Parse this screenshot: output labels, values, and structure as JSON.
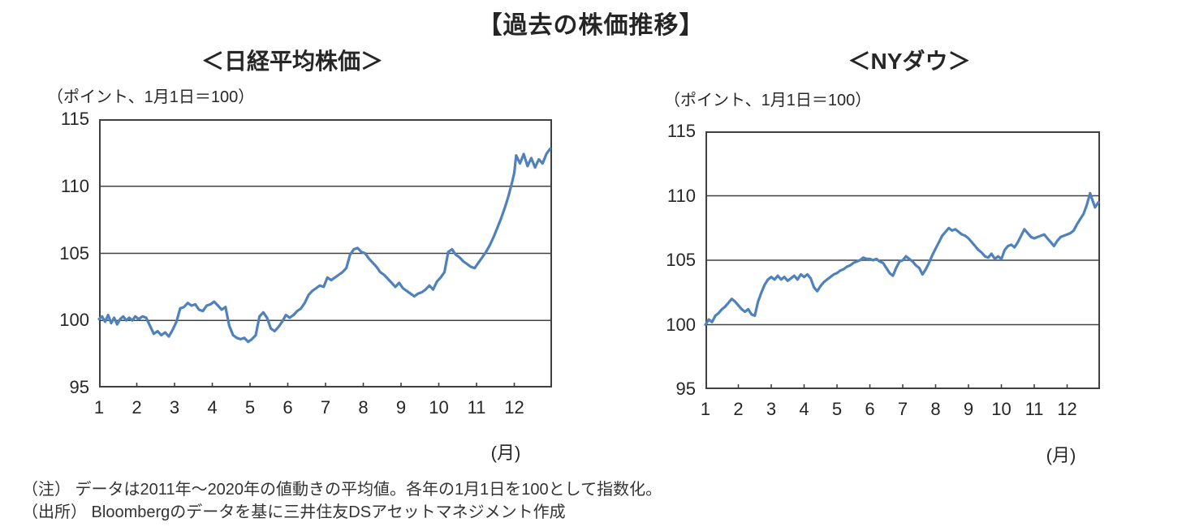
{
  "page_title": "【過去の株価推移】",
  "colors": {
    "background": "#ffffff",
    "line": "#4f81bd",
    "grid": "#404040",
    "text": "#262626",
    "note_text": "#333333"
  },
  "notes": {
    "note1": "（注） データは2011年～2020年の値動きの平均値。各年の1月1日を100として指数化。",
    "note2": "（出所） Bloombergのデータを基に三井住友DSアセットマネジメント作成"
  },
  "chart_data": [
    {
      "type": "line",
      "title": "＜日経平均株価＞",
      "axis_caption": "（ポイント、1月1日＝100）",
      "x_unit_label": "(月)",
      "xlabel": "月",
      "ylabel": "ポイント（1月1日＝100）",
      "ylim": [
        95,
        115
      ],
      "xlim": [
        1,
        13
      ],
      "y_ticks": [
        115,
        110,
        105,
        100,
        95
      ],
      "x_ticks": [
        1,
        2,
        3,
        4,
        5,
        6,
        7,
        8,
        9,
        10,
        11,
        12
      ],
      "grid_values": [
        110,
        105,
        100
      ],
      "legend": "none",
      "series": [
        {
          "name": "日経平均株価（指数）",
          "points": [
            [
              1.0,
              100.1
            ],
            [
              1.08,
              100.3
            ],
            [
              1.16,
              99.9
            ],
            [
              1.24,
              100.4
            ],
            [
              1.32,
              99.8
            ],
            [
              1.4,
              100.2
            ],
            [
              1.48,
              99.7
            ],
            [
              1.56,
              100.1
            ],
            [
              1.64,
              100.3
            ],
            [
              1.72,
              100.0
            ],
            [
              1.8,
              100.2
            ],
            [
              1.88,
              100.0
            ],
            [
              1.96,
              100.3
            ],
            [
              2.05,
              100.1
            ],
            [
              2.15,
              100.3
            ],
            [
              2.25,
              100.2
            ],
            [
              2.35,
              99.6
            ],
            [
              2.45,
              99.0
            ],
            [
              2.55,
              99.2
            ],
            [
              2.65,
              98.9
            ],
            [
              2.75,
              99.1
            ],
            [
              2.85,
              98.8
            ],
            [
              2.95,
              99.3
            ],
            [
              3.05,
              99.9
            ],
            [
              3.15,
              100.9
            ],
            [
              3.25,
              101.0
            ],
            [
              3.35,
              101.3
            ],
            [
              3.45,
              101.1
            ],
            [
              3.55,
              101.2
            ],
            [
              3.65,
              100.8
            ],
            [
              3.75,
              100.7
            ],
            [
              3.85,
              101.1
            ],
            [
              3.95,
              101.2
            ],
            [
              4.05,
              101.4
            ],
            [
              4.15,
              101.1
            ],
            [
              4.25,
              100.8
            ],
            [
              4.35,
              101.0
            ],
            [
              4.45,
              99.6
            ],
            [
              4.55,
              98.9
            ],
            [
              4.65,
              98.7
            ],
            [
              4.75,
              98.6
            ],
            [
              4.85,
              98.7
            ],
            [
              4.95,
              98.4
            ],
            [
              5.05,
              98.6
            ],
            [
              5.15,
              98.9
            ],
            [
              5.25,
              100.3
            ],
            [
              5.35,
              100.6
            ],
            [
              5.45,
              100.2
            ],
            [
              5.55,
              99.4
            ],
            [
              5.65,
              99.2
            ],
            [
              5.75,
              99.5
            ],
            [
              5.85,
              99.9
            ],
            [
              5.95,
              100.4
            ],
            [
              6.05,
              100.2
            ],
            [
              6.15,
              100.4
            ],
            [
              6.25,
              100.7
            ],
            [
              6.35,
              100.9
            ],
            [
              6.45,
              101.3
            ],
            [
              6.55,
              101.9
            ],
            [
              6.65,
              102.2
            ],
            [
              6.75,
              102.4
            ],
            [
              6.85,
              102.6
            ],
            [
              6.95,
              102.5
            ],
            [
              7.05,
              103.2
            ],
            [
              7.15,
              103.0
            ],
            [
              7.25,
              103.2
            ],
            [
              7.35,
              103.4
            ],
            [
              7.45,
              103.6
            ],
            [
              7.55,
              103.9
            ],
            [
              7.65,
              104.9
            ],
            [
              7.75,
              105.3
            ],
            [
              7.85,
              105.4
            ],
            [
              7.95,
              105.1
            ],
            [
              8.05,
              105.0
            ],
            [
              8.15,
              104.6
            ],
            [
              8.25,
              104.3
            ],
            [
              8.35,
              104.0
            ],
            [
              8.45,
              103.6
            ],
            [
              8.55,
              103.4
            ],
            [
              8.65,
              103.1
            ],
            [
              8.75,
              102.8
            ],
            [
              8.85,
              102.5
            ],
            [
              8.95,
              102.8
            ],
            [
              9.05,
              102.4
            ],
            [
              9.15,
              102.2
            ],
            [
              9.25,
              102.0
            ],
            [
              9.35,
              101.8
            ],
            [
              9.45,
              102.0
            ],
            [
              9.55,
              102.1
            ],
            [
              9.65,
              102.3
            ],
            [
              9.75,
              102.6
            ],
            [
              9.85,
              102.3
            ],
            [
              9.95,
              102.9
            ],
            [
              10.05,
              103.2
            ],
            [
              10.15,
              103.6
            ],
            [
              10.25,
              105.1
            ],
            [
              10.35,
              105.3
            ],
            [
              10.45,
              104.9
            ],
            [
              10.55,
              104.7
            ],
            [
              10.65,
              104.4
            ],
            [
              10.75,
              104.2
            ],
            [
              10.85,
              104.0
            ],
            [
              10.95,
              103.9
            ],
            [
              11.05,
              104.3
            ],
            [
              11.15,
              104.7
            ],
            [
              11.25,
              105.1
            ],
            [
              11.35,
              105.6
            ],
            [
              11.45,
              106.2
            ],
            [
              11.55,
              106.9
            ],
            [
              11.65,
              107.6
            ],
            [
              11.75,
              108.4
            ],
            [
              11.85,
              109.3
            ],
            [
              11.95,
              110.4
            ],
            [
              12.0,
              111.0
            ],
            [
              12.05,
              112.3
            ],
            [
              12.15,
              111.7
            ],
            [
              12.25,
              112.4
            ],
            [
              12.35,
              111.5
            ],
            [
              12.45,
              112.1
            ],
            [
              12.55,
              111.4
            ],
            [
              12.65,
              112.0
            ],
            [
              12.75,
              111.7
            ],
            [
              12.85,
              112.4
            ],
            [
              12.95,
              112.8
            ]
          ]
        }
      ]
    },
    {
      "type": "line",
      "title": "＜NYダウ＞",
      "axis_caption": "（ポイント、1月1日＝100）",
      "x_unit_label": "(月)",
      "xlabel": "月",
      "ylabel": "ポイント（1月1日＝100）",
      "ylim": [
        95,
        115
      ],
      "xlim": [
        1,
        13
      ],
      "y_ticks": [
        115,
        110,
        105,
        100,
        95
      ],
      "x_ticks": [
        1,
        2,
        3,
        4,
        5,
        6,
        7,
        8,
        9,
        10,
        11,
        12
      ],
      "grid_values": [
        110,
        105,
        100
      ],
      "legend": "none",
      "series": [
        {
          "name": "NYダウ（指数）",
          "points": [
            [
              1.0,
              100.0
            ],
            [
              1.1,
              100.4
            ],
            [
              1.2,
              100.2
            ],
            [
              1.3,
              100.7
            ],
            [
              1.4,
              100.9
            ],
            [
              1.5,
              101.2
            ],
            [
              1.6,
              101.4
            ],
            [
              1.7,
              101.7
            ],
            [
              1.8,
              102.0
            ],
            [
              1.9,
              101.8
            ],
            [
              2.0,
              101.5
            ],
            [
              2.1,
              101.2
            ],
            [
              2.2,
              101.0
            ],
            [
              2.3,
              101.2
            ],
            [
              2.4,
              100.8
            ],
            [
              2.5,
              100.7
            ],
            [
              2.6,
              101.8
            ],
            [
              2.7,
              102.5
            ],
            [
              2.8,
              103.1
            ],
            [
              2.9,
              103.5
            ],
            [
              3.0,
              103.7
            ],
            [
              3.1,
              103.5
            ],
            [
              3.2,
              103.8
            ],
            [
              3.3,
              103.5
            ],
            [
              3.4,
              103.7
            ],
            [
              3.5,
              103.4
            ],
            [
              3.6,
              103.6
            ],
            [
              3.7,
              103.8
            ],
            [
              3.8,
              103.5
            ],
            [
              3.9,
              103.9
            ],
            [
              4.0,
              103.7
            ],
            [
              4.1,
              103.9
            ],
            [
              4.2,
              103.6
            ],
            [
              4.3,
              102.9
            ],
            [
              4.4,
              102.6
            ],
            [
              4.5,
              103.0
            ],
            [
              4.6,
              103.3
            ],
            [
              4.7,
              103.5
            ],
            [
              4.8,
              103.7
            ],
            [
              4.9,
              103.9
            ],
            [
              5.0,
              104.0
            ],
            [
              5.1,
              104.2
            ],
            [
              5.2,
              104.3
            ],
            [
              5.3,
              104.5
            ],
            [
              5.4,
              104.6
            ],
            [
              5.5,
              104.8
            ],
            [
              5.6,
              104.9
            ],
            [
              5.7,
              105.0
            ],
            [
              5.8,
              105.2
            ],
            [
              5.9,
              105.1
            ],
            [
              6.0,
              105.1
            ],
            [
              6.1,
              105.0
            ],
            [
              6.2,
              105.1
            ],
            [
              6.3,
              104.9
            ],
            [
              6.4,
              104.8
            ],
            [
              6.5,
              104.4
            ],
            [
              6.6,
              104.0
            ],
            [
              6.7,
              103.8
            ],
            [
              6.8,
              104.4
            ],
            [
              6.9,
              104.9
            ],
            [
              7.0,
              105.0
            ],
            [
              7.1,
              105.3
            ],
            [
              7.2,
              105.1
            ],
            [
              7.3,
              104.9
            ],
            [
              7.4,
              104.6
            ],
            [
              7.5,
              104.4
            ],
            [
              7.6,
              103.9
            ],
            [
              7.7,
              104.3
            ],
            [
              7.8,
              104.8
            ],
            [
              7.9,
              105.4
            ],
            [
              8.0,
              105.9
            ],
            [
              8.1,
              106.4
            ],
            [
              8.2,
              106.9
            ],
            [
              8.3,
              107.2
            ],
            [
              8.4,
              107.5
            ],
            [
              8.5,
              107.3
            ],
            [
              8.6,
              107.4
            ],
            [
              8.7,
              107.2
            ],
            [
              8.8,
              107.0
            ],
            [
              8.9,
              106.9
            ],
            [
              9.0,
              106.7
            ],
            [
              9.1,
              106.4
            ],
            [
              9.2,
              106.1
            ],
            [
              9.3,
              105.8
            ],
            [
              9.4,
              105.6
            ],
            [
              9.5,
              105.3
            ],
            [
              9.6,
              105.2
            ],
            [
              9.7,
              105.5
            ],
            [
              9.8,
              105.1
            ],
            [
              9.9,
              105.3
            ],
            [
              10.0,
              105.1
            ],
            [
              10.1,
              105.8
            ],
            [
              10.2,
              106.1
            ],
            [
              10.3,
              106.2
            ],
            [
              10.4,
              106.0
            ],
            [
              10.5,
              106.4
            ],
            [
              10.6,
              106.9
            ],
            [
              10.7,
              107.4
            ],
            [
              10.8,
              107.1
            ],
            [
              10.9,
              106.8
            ],
            [
              11.0,
              106.7
            ],
            [
              11.1,
              106.8
            ],
            [
              11.2,
              106.9
            ],
            [
              11.3,
              107.0
            ],
            [
              11.4,
              106.7
            ],
            [
              11.5,
              106.4
            ],
            [
              11.6,
              106.1
            ],
            [
              11.7,
              106.5
            ],
            [
              11.8,
              106.8
            ],
            [
              11.9,
              106.9
            ],
            [
              12.0,
              107.0
            ],
            [
              12.1,
              107.1
            ],
            [
              12.2,
              107.3
            ],
            [
              12.3,
              107.8
            ],
            [
              12.4,
              108.2
            ],
            [
              12.5,
              108.6
            ],
            [
              12.6,
              109.3
            ],
            [
              12.7,
              110.2
            ],
            [
              12.75,
              109.8
            ],
            [
              12.85,
              109.1
            ],
            [
              12.95,
              109.5
            ]
          ]
        }
      ]
    }
  ]
}
